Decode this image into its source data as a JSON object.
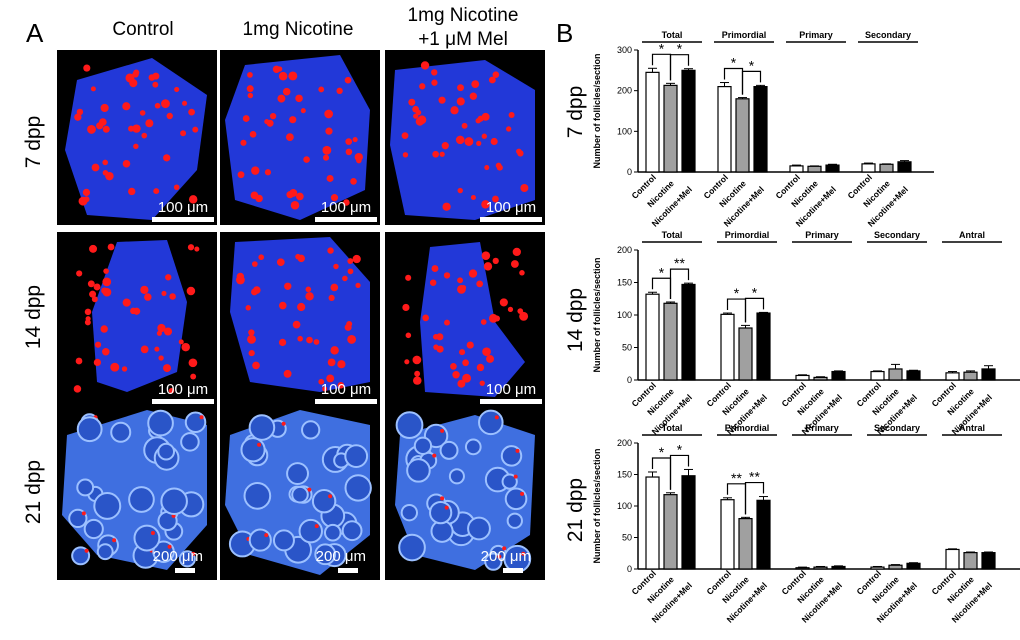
{
  "panel_a": {
    "letter": "A",
    "columns": [
      "Control",
      "1mg Nicotine",
      "1mg Nicotine\n+1 μM Mel"
    ],
    "rows": [
      "7 dpp",
      "14 dpp",
      "21 dpp"
    ],
    "scale_bars": [
      [
        "100 μm",
        "100 μm",
        "100 μm"
      ],
      [
        "100 μm",
        "100 μm",
        "100 μm"
      ],
      [
        "200 μm",
        "200 μm",
        "200 μm"
      ]
    ]
  },
  "panel_b": {
    "letter": "B",
    "ylabel": "Number of follicles/section"
  },
  "chart_data": [
    {
      "type": "bar",
      "row_label": "7 dpp",
      "ylabel": "Number of follicles/section",
      "ylim": [
        0,
        300
      ],
      "yticks": [
        0,
        100,
        200,
        300
      ],
      "groups": [
        "Total",
        "Primordial",
        "Primary",
        "Secondary"
      ],
      "treatments": [
        "Control",
        "Nicotine",
        "Nicotine+Mel"
      ],
      "series": [
        {
          "name": "Control",
          "values": [
            245,
            210,
            15,
            20
          ],
          "errors": [
            10,
            10,
            2,
            2
          ]
        },
        {
          "name": "Nicotine",
          "values": [
            213,
            180,
            14,
            19
          ],
          "errors": [
            5,
            3,
            1,
            1
          ]
        },
        {
          "name": "Nicotine+Mel",
          "values": [
            250,
            210,
            17,
            25
          ],
          "errors": [
            4,
            3,
            2,
            3
          ]
        }
      ],
      "significance": [
        {
          "group": "Total",
          "pair": [
            "Control",
            "Nicotine"
          ],
          "label": "*"
        },
        {
          "group": "Total",
          "pair": [
            "Nicotine",
            "Nicotine+Mel"
          ],
          "label": "*"
        },
        {
          "group": "Primordial",
          "pair": [
            "Control",
            "Nicotine"
          ],
          "label": "*"
        },
        {
          "group": "Primordial",
          "pair": [
            "Nicotine",
            "Nicotine+Mel"
          ],
          "label": "*"
        }
      ]
    },
    {
      "type": "bar",
      "row_label": "14 dpp",
      "ylabel": "Number of follicles/section",
      "ylim": [
        0,
        200
      ],
      "yticks": [
        0,
        50,
        100,
        150,
        200
      ],
      "groups": [
        "Total",
        "Primordial",
        "Primary",
        "Secondary",
        "Antral"
      ],
      "treatments": [
        "Control",
        "Nicotine",
        "Nicotine+Mel"
      ],
      "series": [
        {
          "name": "Control",
          "values": [
            132,
            101,
            7,
            13,
            11
          ],
          "errors": [
            3,
            2,
            1,
            1,
            2
          ]
        },
        {
          "name": "Nicotine",
          "values": [
            118,
            80,
            4,
            17,
            12
          ],
          "errors": [
            2,
            4,
            1,
            7,
            2
          ]
        },
        {
          "name": "Nicotine+Mel",
          "values": [
            147,
            103,
            13,
            14,
            17
          ],
          "errors": [
            2,
            1,
            1,
            1,
            5
          ]
        }
      ],
      "significance": [
        {
          "group": "Total",
          "pair": [
            "Control",
            "Nicotine"
          ],
          "label": "*"
        },
        {
          "group": "Total",
          "pair": [
            "Nicotine",
            "Nicotine+Mel"
          ],
          "label": "**"
        },
        {
          "group": "Primordial",
          "pair": [
            "Control",
            "Nicotine"
          ],
          "label": "*"
        },
        {
          "group": "Primordial",
          "pair": [
            "Nicotine",
            "Nicotine+Mel"
          ],
          "label": "*"
        }
      ]
    },
    {
      "type": "bar",
      "row_label": "21 dpp",
      "ylabel": "Number of follicles/section",
      "ylim": [
        0,
        200
      ],
      "yticks": [
        0,
        50,
        100,
        150,
        200
      ],
      "groups": [
        "Total",
        "Primordial",
        "Primary",
        "Secondary",
        "Antral"
      ],
      "treatments": [
        "Control",
        "Nicotine",
        "Nicotine+Mel"
      ],
      "series": [
        {
          "name": "Control",
          "values": [
            146,
            110,
            2,
            3,
            31
          ],
          "errors": [
            8,
            3,
            1,
            1,
            1
          ]
        },
        {
          "name": "Nicotine",
          "values": [
            118,
            80,
            3,
            6,
            26
          ],
          "errors": [
            3,
            2,
            1,
            1,
            1
          ]
        },
        {
          "name": "Nicotine+Mel",
          "values": [
            148,
            109,
            4,
            9,
            26
          ],
          "errors": [
            10,
            6,
            1,
            1,
            1
          ]
        }
      ],
      "significance": [
        {
          "group": "Total",
          "pair": [
            "Control",
            "Nicotine"
          ],
          "label": "*"
        },
        {
          "group": "Total",
          "pair": [
            "Nicotine",
            "Nicotine+Mel"
          ],
          "label": "*"
        },
        {
          "group": "Primordial",
          "pair": [
            "Control",
            "Nicotine"
          ],
          "label": "**"
        },
        {
          "group": "Primordial",
          "pair": [
            "Nicotine",
            "Nicotine+Mel"
          ],
          "label": "**"
        }
      ]
    }
  ],
  "colors": {
    "control": "#ffffff",
    "nicotine": "#a0a0a0",
    "nicotine_mel": "#000000",
    "tile_bg": "#000000",
    "nucleus": "#2a3cff",
    "oocyte": "#ff1a1a"
  }
}
